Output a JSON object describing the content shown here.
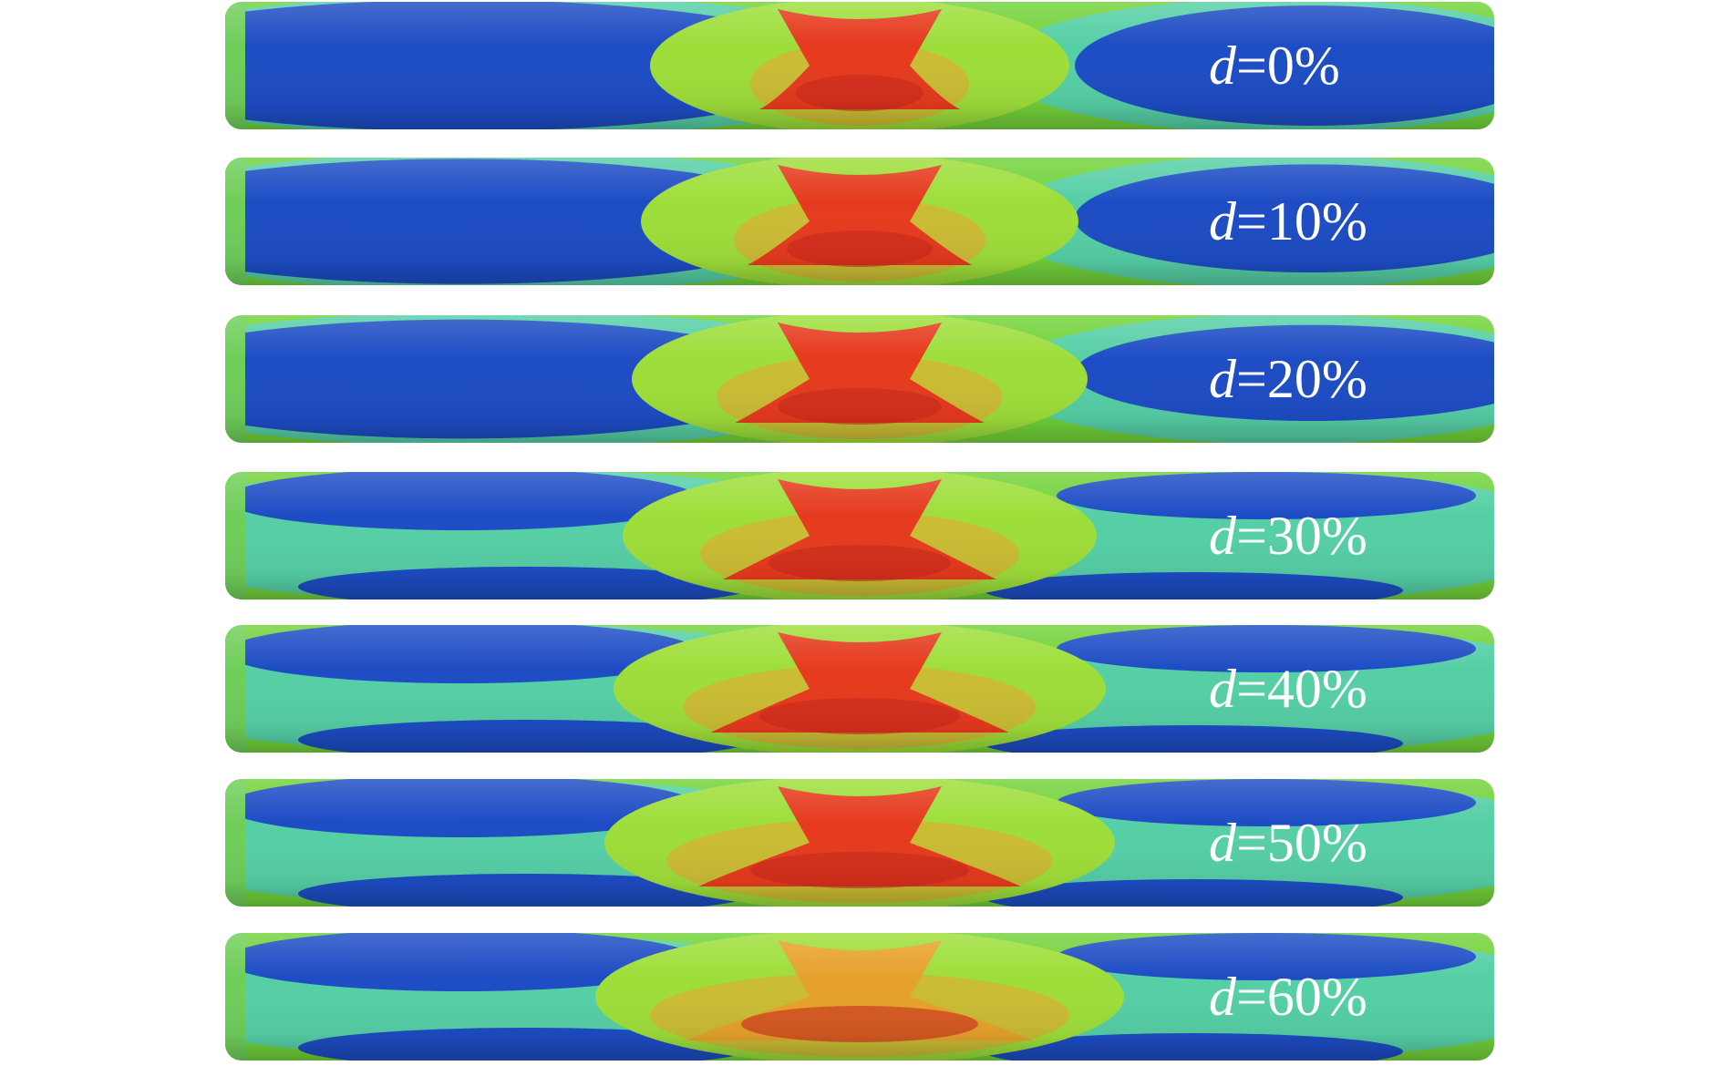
{
  "panels": [
    {
      "variable": "d",
      "value": "=0%"
    },
    {
      "variable": "d",
      "value": "=10%"
    },
    {
      "variable": "d",
      "value": "=20%"
    },
    {
      "variable": "d",
      "value": "=30%"
    },
    {
      "variable": "d",
      "value": "=40%"
    },
    {
      "variable": "d",
      "value": "=50%"
    },
    {
      "variable": "d",
      "value": "=60%"
    }
  ]
}
